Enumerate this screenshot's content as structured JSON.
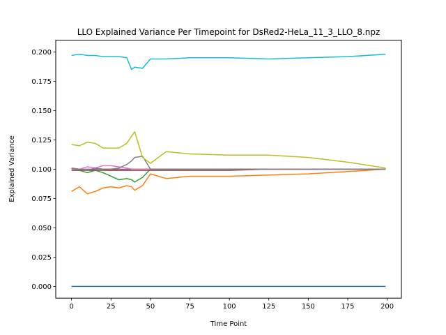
{
  "chart_data": {
    "type": "line",
    "title": "LLO Explained Variance Per Timepoint for DsRed2-HeLa_11_3_LLO_8.npz",
    "xlabel": "Time Point",
    "ylabel": "Explained Variance",
    "xlim": [
      -10,
      209
    ],
    "ylim": [
      -0.01,
      0.21
    ],
    "x_ticks": [
      0,
      25,
      50,
      75,
      100,
      125,
      150,
      175,
      200
    ],
    "y_ticks": [
      0.0,
      0.025,
      0.05,
      0.075,
      0.1,
      0.125,
      0.15,
      0.175,
      0.2
    ],
    "y_tick_labels": [
      "0.000",
      "0.025",
      "0.050",
      "0.075",
      "0.100",
      "0.125",
      "0.150",
      "0.175",
      "0.200"
    ],
    "grid": false,
    "legend": "none",
    "x": [
      0,
      5,
      10,
      15,
      20,
      25,
      30,
      35,
      38,
      40,
      45,
      50,
      60,
      75,
      100,
      125,
      150,
      175,
      199
    ],
    "series": [
      {
        "color": "#1f77b4",
        "values": [
          0.0,
          0.0,
          0.0,
          0.0,
          0.0,
          0.0,
          0.0,
          0.0,
          0.0,
          0.0,
          0.0,
          0.0,
          0.0,
          0.0,
          0.0,
          0.0,
          0.0,
          0.0,
          0.0
        ]
      },
      {
        "color": "#ff7f0e",
        "values": [
          0.081,
          0.085,
          0.079,
          0.081,
          0.084,
          0.085,
          0.084,
          0.086,
          0.085,
          0.082,
          0.086,
          0.096,
          0.092,
          0.094,
          0.094,
          0.095,
          0.096,
          0.098,
          0.1
        ]
      },
      {
        "color": "#2ca02c",
        "values": [
          0.1,
          0.099,
          0.097,
          0.099,
          0.097,
          0.094,
          0.091,
          0.092,
          0.091,
          0.089,
          0.093,
          0.1,
          0.1,
          0.1,
          0.1,
          0.1,
          0.1,
          0.1,
          0.1
        ]
      },
      {
        "color": "#d62728",
        "values": [
          0.1,
          0.1,
          0.099,
          0.1,
          0.1,
          0.099,
          0.1,
          0.099,
          0.1,
          0.1,
          0.1,
          0.1,
          0.1,
          0.1,
          0.1,
          0.1,
          0.1,
          0.1,
          0.1
        ]
      },
      {
        "color": "#9467bd",
        "values": [
          0.1,
          0.1,
          0.1,
          0.1,
          0.1,
          0.1,
          0.1,
          0.1,
          0.1,
          0.1,
          0.1,
          0.1,
          0.1,
          0.1,
          0.1,
          0.1,
          0.1,
          0.1,
          0.1
        ]
      },
      {
        "color": "#8c564b",
        "values": [
          0.099,
          0.099,
          0.099,
          0.099,
          0.099,
          0.099,
          0.099,
          0.099,
          0.099,
          0.099,
          0.099,
          0.099,
          0.099,
          0.099,
          0.099,
          0.1,
          0.1,
          0.1,
          0.1
        ]
      },
      {
        "color": "#e377c2",
        "values": [
          0.1,
          0.1,
          0.102,
          0.101,
          0.103,
          0.103,
          0.102,
          0.101,
          0.1,
          0.1,
          0.1,
          0.1,
          0.1,
          0.1,
          0.1,
          0.1,
          0.1,
          0.1,
          0.1
        ]
      },
      {
        "color": "#7f7f7f",
        "values": [
          0.101,
          0.1,
          0.099,
          0.101,
          0.1,
          0.1,
          0.101,
          0.104,
          0.107,
          0.11,
          0.111,
          0.1,
          0.1,
          0.1,
          0.1,
          0.1,
          0.1,
          0.1,
          0.1
        ]
      },
      {
        "color": "#bcbd22",
        "values": [
          0.121,
          0.12,
          0.123,
          0.122,
          0.118,
          0.118,
          0.118,
          0.122,
          0.128,
          0.132,
          0.11,
          0.105,
          0.115,
          0.113,
          0.112,
          0.112,
          0.11,
          0.106,
          0.101
        ]
      },
      {
        "color": "#17becf",
        "values": [
          0.197,
          0.198,
          0.197,
          0.197,
          0.196,
          0.196,
          0.196,
          0.195,
          0.185,
          0.187,
          0.186,
          0.194,
          0.194,
          0.195,
          0.195,
          0.194,
          0.195,
          0.196,
          0.198
        ]
      }
    ]
  }
}
